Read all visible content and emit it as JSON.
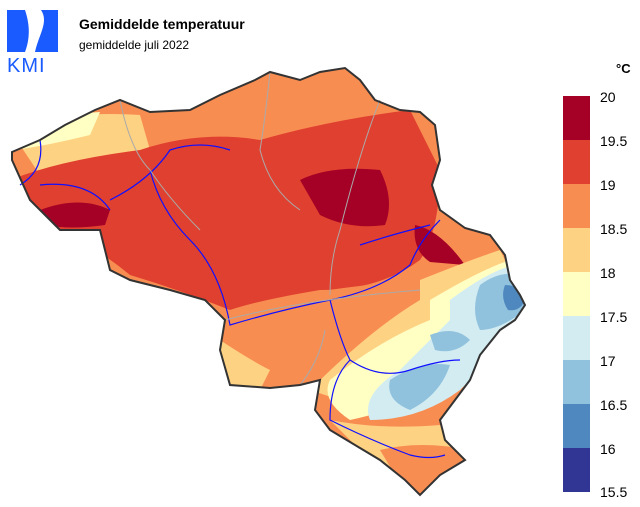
{
  "header": {
    "title": "Gemiddelde temperatuur",
    "subtitle": "gemiddelde juli 2022",
    "logo_text": "KMI"
  },
  "legend": {
    "unit": "°C",
    "ticks": [
      "20",
      "19.5",
      "19",
      "18.5",
      "18",
      "17.5",
      "17",
      "16.5",
      "16",
      "15.5"
    ],
    "bins": [
      {
        "from": 19.5,
        "to": 20,
        "color": "#a50026"
      },
      {
        "from": 19,
        "to": 19.5,
        "color": "#e0402f"
      },
      {
        "from": 18.5,
        "to": 19,
        "color": "#f88d52"
      },
      {
        "from": 18,
        "to": 18.5,
        "color": "#fed283"
      },
      {
        "from": 17.5,
        "to": 18,
        "color": "#ffffc3"
      },
      {
        "from": 17,
        "to": 17.5,
        "color": "#d2ecf2"
      },
      {
        "from": 16.5,
        "to": 17,
        "color": "#91c2dd"
      },
      {
        "from": 16,
        "to": 16.5,
        "color": "#4f87bf"
      },
      {
        "from": 15.5,
        "to": 16,
        "color": "#313695"
      }
    ]
  }
}
